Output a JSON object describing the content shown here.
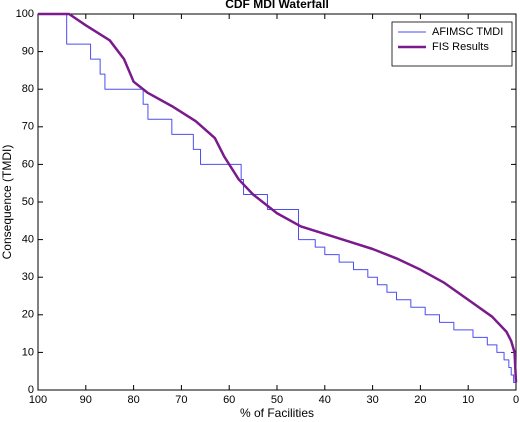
{
  "chart_data": {
    "type": "line",
    "title": "CDF MDI Waterfall",
    "x_label": "% of Facilities",
    "y_label": "Consequence (TMDI)",
    "xlim": [
      100,
      0
    ],
    "ylim": [
      0,
      100
    ],
    "xticks": [
      100,
      90,
      80,
      70,
      60,
      50,
      40,
      30,
      20,
      10,
      0
    ],
    "yticks": [
      0,
      10,
      20,
      30,
      40,
      50,
      60,
      70,
      80,
      90,
      100
    ],
    "grid": false,
    "legend": "upper right",
    "series": [
      {
        "name": "AFIMSC TMDI",
        "color": "#4d4df2",
        "width": 1,
        "x": [
          100,
          94,
          94,
          89,
          89,
          87,
          87,
          86,
          86,
          78,
          78,
          77,
          77,
          72,
          72,
          67.5,
          67.5,
          66,
          66,
          57.5,
          57.5,
          57,
          57,
          52,
          52,
          45.5,
          45.5,
          42,
          42,
          40,
          40,
          37,
          37,
          34,
          34,
          31,
          31,
          29,
          29,
          27,
          27,
          25,
          25,
          22,
          22,
          19,
          19,
          16,
          16,
          13,
          13,
          9,
          9,
          6,
          6,
          4,
          4,
          2.5,
          2.5,
          1.5,
          1.5,
          1,
          1,
          0.5,
          0.5,
          0
        ],
        "values": [
          100,
          100,
          92,
          92,
          88,
          88,
          84,
          84,
          80,
          80,
          76,
          76,
          72,
          72,
          68,
          68,
          64,
          64,
          60,
          60,
          56,
          56,
          52,
          52,
          48,
          48,
          40,
          40,
          38,
          38,
          36,
          36,
          34,
          34,
          32,
          32,
          30,
          30,
          28,
          28,
          26,
          26,
          24,
          24,
          22,
          22,
          20,
          20,
          18,
          18,
          16,
          16,
          14,
          14,
          12,
          12,
          10,
          10,
          8,
          8,
          6,
          6,
          4,
          4,
          2,
          2
        ]
      },
      {
        "name": "FIS Results",
        "color": "#7a1a8c",
        "width": 2.5,
        "x": [
          100,
          93.5,
          90,
          85,
          82,
          80,
          77,
          72,
          67,
          63,
          61,
          58,
          55,
          50,
          45,
          40,
          35,
          30,
          25,
          20,
          15,
          10,
          5,
          2,
          1,
          0.3,
          0
        ],
        "values": [
          100,
          100,
          97,
          93,
          88,
          82,
          79,
          75.5,
          71.5,
          67,
          62,
          56,
          52,
          47,
          43.5,
          41.5,
          39.5,
          37.5,
          35,
          32,
          28.5,
          24,
          19.5,
          15.5,
          13,
          10,
          2
        ]
      }
    ]
  }
}
